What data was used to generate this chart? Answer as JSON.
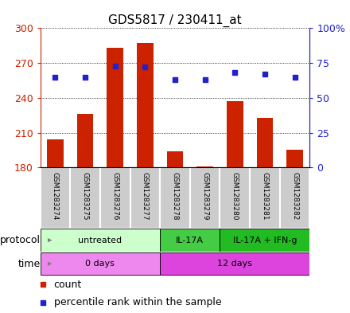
{
  "title": "GDS5817 / 230411_at",
  "samples": [
    "GSM1283274",
    "GSM1283275",
    "GSM1283276",
    "GSM1283277",
    "GSM1283278",
    "GSM1283279",
    "GSM1283280",
    "GSM1283281",
    "GSM1283282"
  ],
  "counts": [
    204,
    226,
    283,
    287,
    194,
    181,
    237,
    223,
    195
  ],
  "percentile_ranks": [
    65,
    65,
    73,
    72,
    63,
    63,
    68,
    67,
    65
  ],
  "y_min": 180,
  "y_max": 300,
  "y_ticks": [
    180,
    210,
    240,
    270,
    300
  ],
  "y2_ticks": [
    0,
    25,
    50,
    75,
    100
  ],
  "y2_tick_labels": [
    "0",
    "25",
    "50",
    "75",
    "100%"
  ],
  "bar_color": "#cc2200",
  "dot_color": "#2222cc",
  "bar_width": 0.55,
  "protocol_groups": [
    {
      "label": "untreated",
      "start": 0,
      "end": 4,
      "color": "#ccffcc"
    },
    {
      "label": "IL-17A",
      "start": 4,
      "end": 6,
      "color": "#44cc44"
    },
    {
      "label": "IL-17A + IFN-g",
      "start": 6,
      "end": 9,
      "color": "#22bb22"
    }
  ],
  "time_groups": [
    {
      "label": "0 days",
      "start": 0,
      "end": 4,
      "color": "#ee88ee"
    },
    {
      "label": "12 days",
      "start": 4,
      "end": 9,
      "color": "#dd44dd"
    }
  ],
  "sample_box_color": "#cccccc",
  "background_color": "#ffffff",
  "title_fontsize": 11,
  "tick_fontsize": 9,
  "label_fontsize": 9,
  "sample_fontsize": 6.5
}
